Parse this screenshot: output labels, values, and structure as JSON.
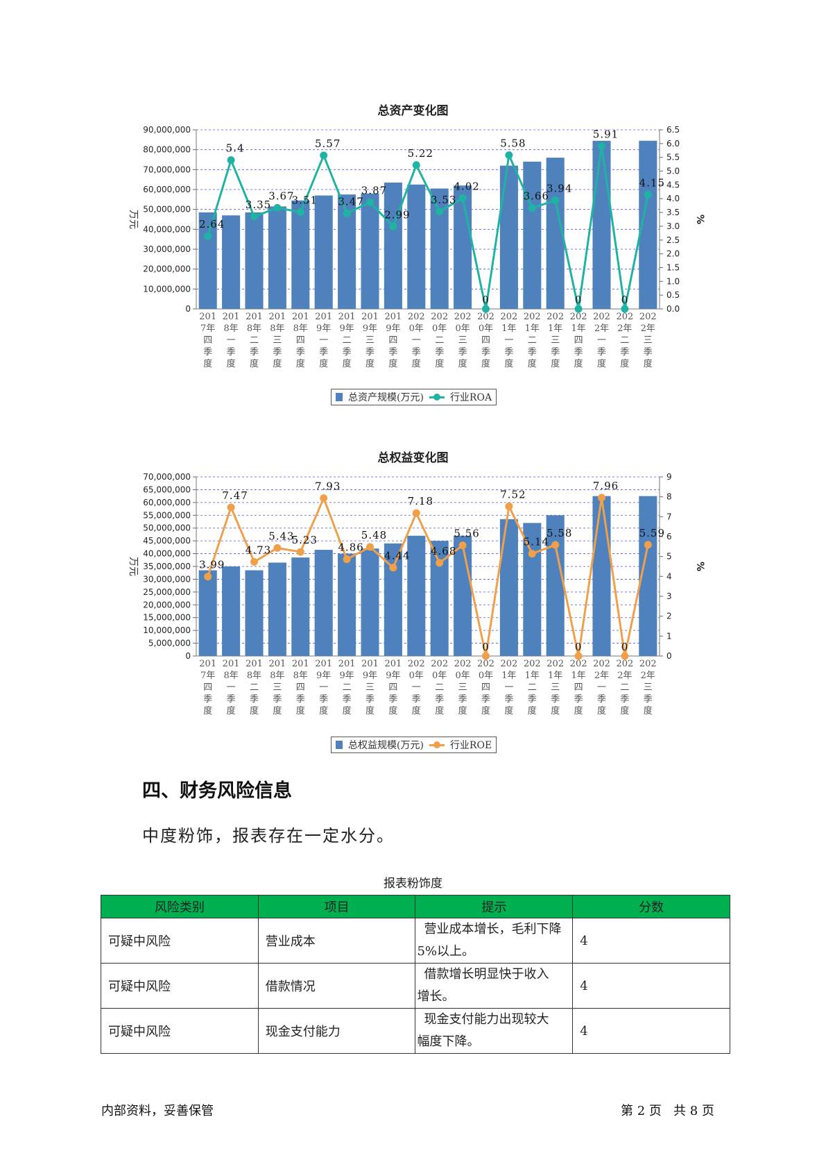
{
  "chart_data": [
    {
      "type": "bar+line",
      "title": "总资产变化图",
      "ylabel_left": "万元",
      "ylabel_right": "%",
      "categories": [
        "2017年四季度",
        "2018年一季度",
        "2018年二季度",
        "2018年三季度",
        "2018年四季度",
        "2019年一季度",
        "2019年二季度",
        "2019年三季度",
        "2019年四季度",
        "2020年一季度",
        "2020年二季度",
        "2020年三季度",
        "2020年四季度",
        "2021年一季度",
        "2021年二季度",
        "2021年三季度",
        "2021年四季度",
        "2022年一季度",
        "2022年二季度",
        "2022年三季度"
      ],
      "category_lines": [
        [
          "201",
          "7年",
          "四",
          "季",
          "度"
        ],
        [
          "201",
          "8年",
          "一",
          "季",
          "度"
        ],
        [
          "201",
          "8年",
          "二",
          "季",
          "度"
        ],
        [
          "201",
          "8年",
          "三",
          "季",
          "度"
        ],
        [
          "201",
          "8年",
          "四",
          "季",
          "度"
        ],
        [
          "201",
          "9年",
          "一",
          "季",
          "度"
        ],
        [
          "201",
          "9年",
          "二",
          "季",
          "度"
        ],
        [
          "201",
          "9年",
          "三",
          "季",
          "度"
        ],
        [
          "201",
          "9年",
          "四",
          "季",
          "度"
        ],
        [
          "202",
          "0年",
          "一",
          "季",
          "度"
        ],
        [
          "202",
          "0年",
          "二",
          "季",
          "度"
        ],
        [
          "202",
          "0年",
          "三",
          "季",
          "度"
        ],
        [
          "202",
          "0年",
          "四",
          "季",
          "度"
        ],
        [
          "202",
          "1年",
          "一",
          "季",
          "度"
        ],
        [
          "202",
          "1年",
          "二",
          "季",
          "度"
        ],
        [
          "202",
          "1年",
          "三",
          "季",
          "度"
        ],
        [
          "202",
          "1年",
          "四",
          "季",
          "度"
        ],
        [
          "202",
          "2年",
          "一",
          "季",
          "度"
        ],
        [
          "202",
          "2年",
          "二",
          "季",
          "度"
        ],
        [
          "202",
          "2年",
          "三",
          "季",
          "度"
        ]
      ],
      "bar_series": {
        "name": "总资产规模(万元)",
        "color": "#4f81bd",
        "values": [
          48500000,
          47000000,
          48500000,
          51500000,
          54500000,
          57000000,
          57500000,
          58000000,
          63500000,
          62500000,
          60500000,
          62000000,
          null,
          72000000,
          74000000,
          76000000,
          null,
          84500000,
          null,
          84500000
        ]
      },
      "line_series": {
        "name": "行业ROA",
        "color": "#20b2a2",
        "values": [
          2.64,
          5.4,
          3.35,
          3.67,
          3.51,
          5.57,
          3.47,
          3.87,
          2.99,
          5.22,
          3.53,
          4.02,
          0,
          5.58,
          3.66,
          3.94,
          0,
          5.91,
          0,
          4.15
        ]
      },
      "ylim_left": [
        0,
        90000000
      ],
      "yticks_left": [
        "0",
        "10,000,000",
        "20,000,000",
        "30,000,000",
        "40,000,000",
        "50,000,000",
        "60,000,000",
        "70,000,000",
        "80,000,000",
        "90,000,000"
      ],
      "ylim_right": [
        0,
        6.5
      ],
      "yticks_right": [
        "0.0",
        "0.5",
        "1.0",
        "1.5",
        "2.0",
        "2.5",
        "3.0",
        "3.5",
        "4.0",
        "4.5",
        "5.0",
        "5.5",
        "6.0",
        "6.5"
      ],
      "grid": true,
      "legend_position": "bottom"
    },
    {
      "type": "bar+line",
      "title": "总权益变化图",
      "ylabel_left": "万元",
      "ylabel_right": "%",
      "categories": [
        "2017年四季度",
        "2018年一季度",
        "2018年二季度",
        "2018年三季度",
        "2018年四季度",
        "2019年一季度",
        "2019年二季度",
        "2019年三季度",
        "2019年四季度",
        "2020年一季度",
        "2020年二季度",
        "2020年三季度",
        "2020年四季度",
        "2021年一季度",
        "2021年二季度",
        "2021年三季度",
        "2021年四季度",
        "2022年一季度",
        "2022年二季度",
        "2022年三季度"
      ],
      "category_lines": [
        [
          "201",
          "7年",
          "四",
          "季",
          "度"
        ],
        [
          "201",
          "8年",
          "一",
          "季",
          "度"
        ],
        [
          "201",
          "8年",
          "二",
          "季",
          "度"
        ],
        [
          "201",
          "8年",
          "三",
          "季",
          "度"
        ],
        [
          "201",
          "8年",
          "四",
          "季",
          "度"
        ],
        [
          "201",
          "9年",
          "一",
          "季",
          "度"
        ],
        [
          "201",
          "9年",
          "二",
          "季",
          "度"
        ],
        [
          "201",
          "9年",
          "三",
          "季",
          "度"
        ],
        [
          "201",
          "9年",
          "四",
          "季",
          "度"
        ],
        [
          "202",
          "0年",
          "一",
          "季",
          "度"
        ],
        [
          "202",
          "0年",
          "二",
          "季",
          "度"
        ],
        [
          "202",
          "0年",
          "三",
          "季",
          "度"
        ],
        [
          "202",
          "0年",
          "四",
          "季",
          "度"
        ],
        [
          "202",
          "1年",
          "一",
          "季",
          "度"
        ],
        [
          "202",
          "1年",
          "二",
          "季",
          "度"
        ],
        [
          "202",
          "1年",
          "三",
          "季",
          "度"
        ],
        [
          "202",
          "1年",
          "四",
          "季",
          "度"
        ],
        [
          "202",
          "2年",
          "一",
          "季",
          "度"
        ],
        [
          "202",
          "2年",
          "二",
          "季",
          "度"
        ],
        [
          "202",
          "2年",
          "三",
          "季",
          "度"
        ]
      ],
      "bar_series": {
        "name": "总权益规模(万元)",
        "color": "#4f81bd",
        "values": [
          33500000,
          35000000,
          33500000,
          36500000,
          38500000,
          41500000,
          40000000,
          42000000,
          44000000,
          47000000,
          45000000,
          47000000,
          null,
          53500000,
          52000000,
          55000000,
          null,
          62500000,
          null,
          62500000
        ]
      },
      "line_series": {
        "name": "行业ROE",
        "color": "#f0a04b",
        "values": [
          3.99,
          7.47,
          4.73,
          5.43,
          5.23,
          7.93,
          4.86,
          5.48,
          4.44,
          7.18,
          4.68,
          5.56,
          0,
          7.52,
          5.14,
          5.58,
          0,
          7.96,
          0,
          5.59
        ]
      },
      "ylim_left": [
        0,
        70000000
      ],
      "yticks_left": [
        "0",
        "5,000,000",
        "10,000,000",
        "15,000,000",
        "20,000,000",
        "25,000,000",
        "30,000,000",
        "35,000,000",
        "40,000,000",
        "45,000,000",
        "50,000,000",
        "55,000,000",
        "60,000,000",
        "65,000,000",
        "70,000,000"
      ],
      "ylim_right": [
        0,
        9
      ],
      "yticks_right": [
        "0",
        "1",
        "2",
        "3",
        "4",
        "5",
        "6",
        "7",
        "8",
        "9"
      ],
      "grid": true,
      "legend_position": "bottom"
    }
  ],
  "section": {
    "heading": "四、财务风险信息",
    "paragraph": "中度粉饰，报表存在一定水分。"
  },
  "table": {
    "caption": "报表粉饰度",
    "header_color": "#00b050",
    "headers": [
      "风险类别",
      "项目",
      "提示",
      "分数"
    ],
    "rows": [
      {
        "category": "可疑中风险",
        "item": "营业成本",
        "hint_line1": "营业成本增长，毛利下降",
        "hint_line2": "5%以上。",
        "score": "4"
      },
      {
        "category": "可疑中风险",
        "item": "借款情况",
        "hint_line1": "借款增长明显快于收入",
        "hint_line2": "增长。",
        "score": "4"
      },
      {
        "category": "可疑中风险",
        "item": "现金支付能力",
        "hint_line1": "现金支付能力出现较大",
        "hint_line2": "幅度下降。",
        "score": "4"
      }
    ]
  },
  "footer": {
    "left": "内部资料，妥善保管",
    "right": "第 2 页   共 8 页"
  }
}
